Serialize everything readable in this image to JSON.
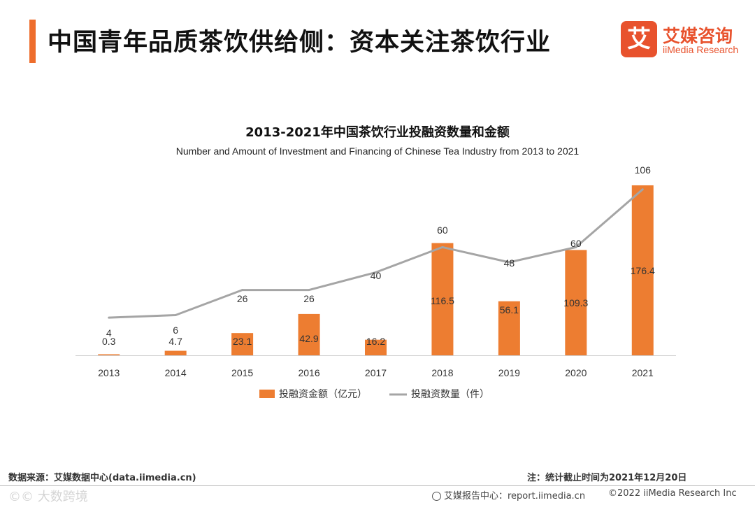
{
  "header": {
    "title": "中国青年品质茶饮供给侧：资本关注茶饮行业",
    "logo": {
      "mark": "艾",
      "name_cn": "艾媒咨询",
      "name_en": "iiMedia Research"
    }
  },
  "colors": {
    "accent": "#ee6d2c",
    "bar": "#ed7d31",
    "line": "#a5a5a5"
  },
  "chart_data": {
    "type": "bar+line",
    "title": "2013-2021年中国茶饮行业投融资数量和金额",
    "subtitle": "Number and Amount of Investment and Financing of Chinese Tea Industry from 2013 to 2021",
    "categories": [
      "2013",
      "2014",
      "2015",
      "2016",
      "2017",
      "2018",
      "2019",
      "2020",
      "2021"
    ],
    "series": [
      {
        "name": "投融资金额（亿元）",
        "type": "bar",
        "values": [
          0.3,
          4.7,
          23.1,
          42.9,
          16.2,
          116.5,
          56.1,
          109.3,
          176.4
        ],
        "labels": [
          "0.3",
          "4.7",
          "23.1",
          "42.9",
          "16.2",
          "116.5",
          "56.1",
          "109.3",
          "176.4"
        ]
      },
      {
        "name": "投融资数量（件）",
        "type": "line",
        "values": [
          4,
          6,
          26,
          26,
          40,
          60,
          48,
          60,
          106
        ],
        "labels": [
          "4",
          "6",
          "26",
          "26",
          "40",
          "60",
          "48",
          "60",
          "106"
        ]
      }
    ],
    "bar_ylim": [
      0,
      180
    ],
    "line_ylim": [
      -26,
      112
    ],
    "legend_position": "bottom"
  },
  "footer": {
    "source": "数据来源：艾媒数据中心(data.iimedia.cn)",
    "note": "注：统计截止时间为2021年12月20日",
    "report": "艾媒报告中心：report.iimedia.cn",
    "copyright": "©2022  iiMedia Research  Inc",
    "watermark": "©© 大数跨境"
  }
}
